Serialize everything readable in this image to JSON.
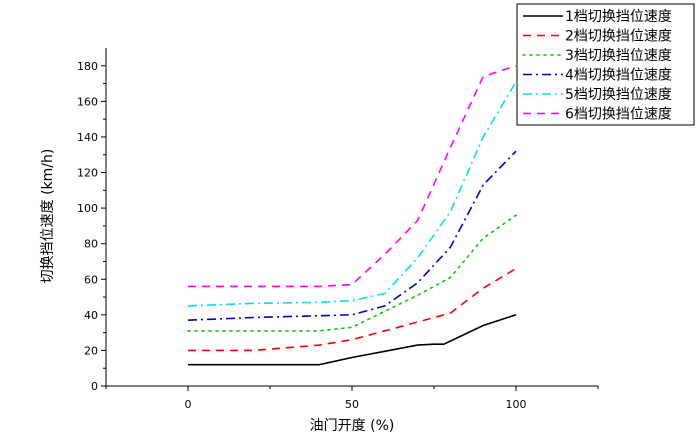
{
  "chart_data": {
    "type": "line",
    "title": "",
    "xlabel": "油门开度 (%)",
    "ylabel": "切换挡位速度 (km/h)",
    "xlim": [
      -25,
      125
    ],
    "ylim": [
      0,
      190
    ],
    "xticks": [
      0,
      50,
      100
    ],
    "yticks": [
      0,
      20,
      40,
      60,
      80,
      100,
      120,
      140,
      160,
      180
    ],
    "grid": false,
    "legend_position": "top-right",
    "series": [
      {
        "name": "1档切换挡位速度",
        "color": "#000000",
        "dash": "solid",
        "x": [
          0,
          20,
          40,
          50,
          60,
          70,
          75,
          78,
          90,
          100
        ],
        "y": [
          12,
          12,
          12,
          16,
          19.5,
          23,
          23.5,
          23.5,
          34,
          40
        ]
      },
      {
        "name": "2档切换挡位速度",
        "color": "#ff0000",
        "dash": "dashed",
        "x": [
          0,
          20,
          40,
          50,
          60,
          70,
          80,
          90,
          100
        ],
        "y": [
          20,
          20,
          23,
          26,
          31,
          36,
          41,
          55,
          66
        ]
      },
      {
        "name": "3档切换挡位速度",
        "color": "#00cc00",
        "dash": "dotted",
        "x": [
          0,
          20,
          40,
          50,
          60,
          70,
          80,
          90,
          100
        ],
        "y": [
          31,
          31,
          31,
          33,
          42,
          51,
          61,
          83,
          96
        ]
      },
      {
        "name": "4档切换挡位速度",
        "color": "#0000cc",
        "dash": "dashdot",
        "x": [
          0,
          20,
          40,
          50,
          60,
          70,
          80,
          90,
          100
        ],
        "y": [
          37,
          38.5,
          39.5,
          40,
          45,
          58,
          78,
          113,
          132
        ]
      },
      {
        "name": "5档切换挡位速度",
        "color": "#00e0ee",
        "dash": "dashdot",
        "x": [
          0,
          20,
          40,
          50,
          60,
          70,
          80,
          90,
          100
        ],
        "y": [
          45,
          46.5,
          47,
          48,
          52,
          72,
          98,
          140,
          171
        ]
      },
      {
        "name": "6档切换挡位速度",
        "color": "#ff00ff",
        "dash": "dashed",
        "x": [
          0,
          20,
          40,
          50,
          60,
          70,
          80,
          90,
          100
        ],
        "y": [
          56,
          56,
          56,
          57,
          74,
          93,
          134,
          174,
          180
        ]
      }
    ]
  }
}
